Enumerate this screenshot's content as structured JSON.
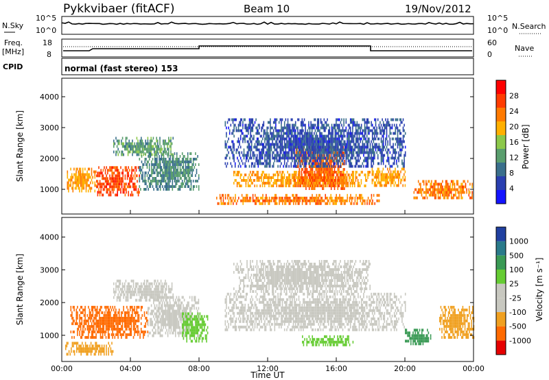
{
  "header": {
    "radar": "Pykkvibaer (fitACF)",
    "beam": "Beam 10",
    "date": "19/Nov/2012"
  },
  "nsky_panel": {
    "left_label": "N.Sky",
    "left_ticks": [
      "10^5",
      "10^0"
    ],
    "right_ticks": [
      "10^5",
      "10^0"
    ],
    "right_label": "N.Search"
  },
  "freq_panel": {
    "left_label_1": "Freq.",
    "left_label_2": "[MHz]",
    "left_ticks": [
      "18",
      "8"
    ],
    "right_ticks": [
      "60",
      "0"
    ],
    "right_label": "Nave"
  },
  "cpid_panel": {
    "label": "CPID",
    "text": "normal (fast stereo) 153"
  },
  "colors": {
    "power": [
      "#1414ff",
      "#2a3fb0",
      "#3a6f8c",
      "#5a9e6e",
      "#8cc84a",
      "#ffb000",
      "#ff7a00",
      "#ff3c00",
      "#ff0000"
    ],
    "velocity": [
      "#e60000",
      "#ff6a00",
      "#f0a020",
      "#c8c8c0",
      "#c8c8c0",
      "#66cc33",
      "#3a9a55",
      "#2a7a8a",
      "#2040a0"
    ]
  },
  "chart_data": [
    {
      "type": "heatmap",
      "title": "Power",
      "ylabel": "Slant Range [km]",
      "ylim": [
        200,
        4600
      ],
      "yticks": [
        "4000",
        "3000",
        "2000",
        "1000"
      ],
      "colorbar_label": "Power [dB]",
      "colorbar_ticks": [
        "28",
        "24",
        "20",
        "16",
        "12",
        "8",
        "4"
      ],
      "bands": [
        {
          "x": [
            0.3,
            2.0
          ],
          "y": [
            950,
            1700
          ],
          "value": 22
        },
        {
          "x": [
            2.0,
            4.5
          ],
          "y": [
            850,
            1750
          ],
          "value": 27
        },
        {
          "x": [
            3.0,
            6.5
          ],
          "y": [
            2100,
            2700
          ],
          "value": 14
        },
        {
          "x": [
            4.5,
            8.0
          ],
          "y": [
            1000,
            2200
          ],
          "value": 12
        },
        {
          "x": [
            9.0,
            18.5
          ],
          "y": [
            550,
            850
          ],
          "value": 24
        },
        {
          "x": [
            10.0,
            18.0
          ],
          "y": [
            1100,
            1600
          ],
          "value": 22
        },
        {
          "x": [
            13.5,
            16.5
          ],
          "y": [
            1000,
            2400
          ],
          "value": 26
        },
        {
          "x": [
            9.5,
            20.0
          ],
          "y": [
            1700,
            3300
          ],
          "value": 8
        },
        {
          "x": [
            18.0,
            20.0
          ],
          "y": [
            1100,
            1700
          ],
          "value": 22
        },
        {
          "x": [
            20.5,
            24.0
          ],
          "y": [
            700,
            1300
          ],
          "value": 24
        }
      ]
    },
    {
      "type": "heatmap",
      "title": "Velocity",
      "ylabel": "Slant Range [km]",
      "xlabel": "Time UT",
      "ylim": [
        200,
        4600
      ],
      "yticks": [
        "4000",
        "3000",
        "2000",
        "1000"
      ],
      "xticks": [
        "00:00",
        "04:00",
        "08:00",
        "12:00",
        "16:00",
        "20:00",
        "00:00"
      ],
      "colorbar_label": "Velocity [m s⁻¹]",
      "colorbar_ticks": [
        "1000",
        "500",
        "100",
        "25",
        "-25",
        "-100",
        "-500",
        "-1000"
      ],
      "bands": [
        {
          "x": [
            0.5,
            5.0
          ],
          "y": [
            900,
            1900
          ],
          "value": -300
        },
        {
          "x": [
            0.2,
            3.0
          ],
          "y": [
            450,
            800
          ],
          "value": -200
        },
        {
          "x": [
            5.0,
            8.0
          ],
          "y": [
            1000,
            2200
          ],
          "value": 0
        },
        {
          "x": [
            3.0,
            6.5
          ],
          "y": [
            2100,
            2700
          ],
          "value": 0
        },
        {
          "x": [
            7.0,
            8.5
          ],
          "y": [
            800,
            1700
          ],
          "value": 150
        },
        {
          "x": [
            9.5,
            20.0
          ],
          "y": [
            1200,
            2300
          ],
          "value": 0
        },
        {
          "x": [
            10.0,
            18.0
          ],
          "y": [
            2300,
            3300
          ],
          "value": 0
        },
        {
          "x": [
            14.0,
            17.0
          ],
          "y": [
            700,
            1000
          ],
          "value": 150
        },
        {
          "x": [
            20.0,
            21.5
          ],
          "y": [
            700,
            1200
          ],
          "value": 400
        },
        {
          "x": [
            22.0,
            24.0
          ],
          "y": [
            900,
            1900
          ],
          "value": -150
        }
      ]
    }
  ]
}
